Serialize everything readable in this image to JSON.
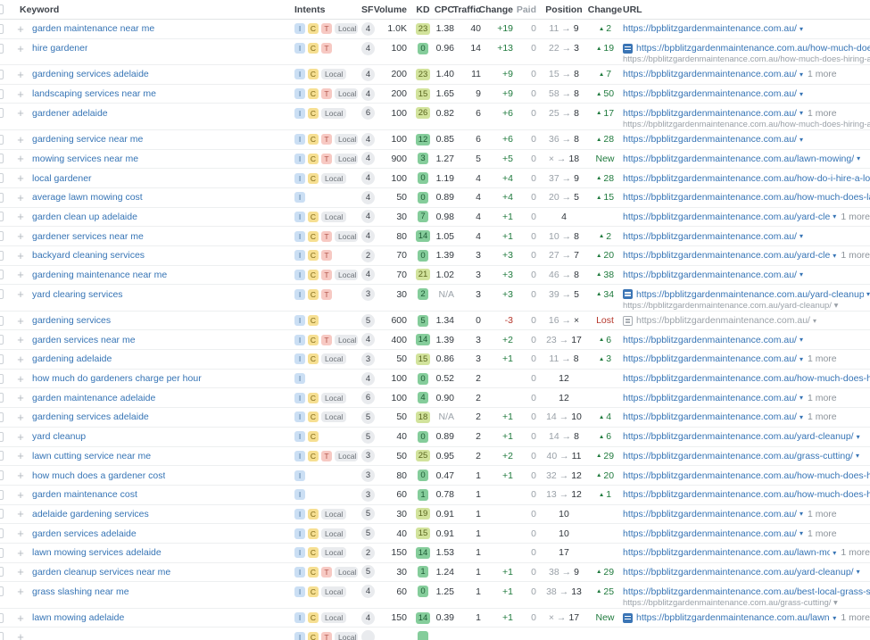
{
  "colors": {
    "link_blue": "#3674b5",
    "positive_green": "#1f7a3d",
    "negative_red": "#b5362b",
    "muted_grey": "#9aa1a8",
    "kd_easy_bg": "#85cd9b",
    "kd_medium_bg": "#d2e39c",
    "intent_informational_bg": "#cbdff4",
    "intent_commercial_bg": "#f6df92",
    "intent_transactional_bg": "#f7c9c3",
    "intent_local_bg": "#e9ebee"
  },
  "table": {
    "headers": [
      "Keyword",
      "Intents",
      "SF",
      "Volume",
      "KD",
      "CPC",
      "Traffic",
      "Change",
      "Paid",
      "Position",
      "Change",
      "URL"
    ],
    "rows": [
      {
        "kw": "garden maintenance near me",
        "intents": [
          "I",
          "C",
          "T",
          "Local"
        ],
        "sf": "4",
        "vol": "1.0K",
        "kd": "23",
        "kdlv": "m",
        "cpc": "1.38",
        "traf": "40",
        "tchg": "+19",
        "paid": "0",
        "pprev": "11",
        "pcur": "9",
        "chg": "2",
        "chgtype": "up",
        "icon": "",
        "url": "https://bpblitzgardenmaintenance.com.au/",
        "caret": true,
        "more": "",
        "urlgrey": false,
        "url2": "",
        "url2caret": false
      },
      {
        "kw": "hire gardener",
        "intents": [
          "I",
          "C",
          "T"
        ],
        "sf": "4",
        "vol": "100",
        "kd": "0",
        "kdlv": "e",
        "cpc": "0.96",
        "traf": "14",
        "tchg": "+13",
        "paid": "0",
        "pprev": "22",
        "pcur": "3",
        "chg": "19",
        "chgtype": "up",
        "icon": "blue",
        "url": "https://bpblitzgardenmaintenance.com.au/how-much-does-hiring-a-g",
        "caret": false,
        "more": "",
        "urlgrey": false,
        "url2": "https://bpblitzgardenmaintenance.com.au/how-much-does-hiring-a-g",
        "url2caret": false
      },
      {
        "kw": "gardening services adelaide",
        "intents": [
          "I",
          "C",
          "Local"
        ],
        "sf": "4",
        "vol": "200",
        "kd": "23",
        "kdlv": "m",
        "cpc": "1.40",
        "traf": "11",
        "tchg": "+9",
        "paid": "0",
        "pprev": "15",
        "pcur": "8",
        "chg": "7",
        "chgtype": "up",
        "icon": "",
        "url": "https://bpblitzgardenmaintenance.com.au/",
        "caret": true,
        "more": "1 more",
        "urlgrey": false,
        "url2": "",
        "url2caret": false
      },
      {
        "kw": "landscaping services near me",
        "intents": [
          "I",
          "C",
          "T",
          "Local"
        ],
        "sf": "4",
        "vol": "200",
        "kd": "15",
        "kdlv": "m",
        "cpc": "1.65",
        "traf": "9",
        "tchg": "+9",
        "paid": "0",
        "pprev": "58",
        "pcur": "8",
        "chg": "50",
        "chgtype": "up",
        "icon": "",
        "url": "https://bpblitzgardenmaintenance.com.au/",
        "caret": true,
        "more": "",
        "urlgrey": false,
        "url2": "",
        "url2caret": false
      },
      {
        "kw": "gardener adelaide",
        "intents": [
          "I",
          "C",
          "Local"
        ],
        "sf": "6",
        "vol": "100",
        "kd": "26",
        "kdlv": "m",
        "cpc": "0.82",
        "traf": "6",
        "tchg": "+6",
        "paid": "0",
        "pprev": "25",
        "pcur": "8",
        "chg": "17",
        "chgtype": "up",
        "icon": "",
        "url": "https://bpblitzgardenmaintenance.com.au/",
        "caret": true,
        "more": "1 more",
        "urlgrey": false,
        "url2": "https://bpblitzgardenmaintenance.com.au/how-much-does-hiring-a-g",
        "url2caret": false
      },
      {
        "kw": "gardening service near me",
        "intents": [
          "I",
          "C",
          "T",
          "Local"
        ],
        "sf": "4",
        "vol": "100",
        "kd": "12",
        "kdlv": "e",
        "cpc": "0.85",
        "traf": "6",
        "tchg": "+6",
        "paid": "0",
        "pprev": "36",
        "pcur": "8",
        "chg": "28",
        "chgtype": "up",
        "icon": "",
        "url": "https://bpblitzgardenmaintenance.com.au/",
        "caret": true,
        "more": "",
        "urlgrey": false,
        "url2": "",
        "url2caret": false
      },
      {
        "kw": "mowing services near me",
        "intents": [
          "I",
          "C",
          "T",
          "Local"
        ],
        "sf": "4",
        "vol": "900",
        "kd": "3",
        "kdlv": "e",
        "cpc": "1.27",
        "traf": "5",
        "tchg": "+5",
        "paid": "0",
        "pprev": "×",
        "pcur": "18",
        "chg": "",
        "chgtype": "new",
        "icon": "",
        "url": "https://bpblitzgardenmaintenance.com.au/lawn-mowing/",
        "caret": true,
        "more": "",
        "urlgrey": false,
        "url2": "",
        "url2caret": false
      },
      {
        "kw": "local gardener",
        "intents": [
          "I",
          "C",
          "Local"
        ],
        "sf": "4",
        "vol": "100",
        "kd": "0",
        "kdlv": "e",
        "cpc": "1.19",
        "traf": "4",
        "tchg": "+4",
        "paid": "0",
        "pprev": "37",
        "pcur": "9",
        "chg": "28",
        "chgtype": "up",
        "icon": "",
        "url": "https://bpblitzgardenmaintenance.com.au/how-do-i-hire-a-local-garde",
        "caret": false,
        "more": "",
        "urlgrey": false,
        "url2": "",
        "url2caret": false
      },
      {
        "kw": "average lawn mowing cost",
        "intents": [
          "I"
        ],
        "sf": "4",
        "vol": "50",
        "kd": "0",
        "kdlv": "e",
        "cpc": "0.89",
        "traf": "4",
        "tchg": "+4",
        "paid": "0",
        "pprev": "20",
        "pcur": "5",
        "chg": "15",
        "chgtype": "up",
        "icon": "",
        "url": "https://bpblitzgardenmaintenance.com.au/how-much-does-lawn-mow",
        "caret": false,
        "more": "",
        "urlgrey": false,
        "url2": "",
        "url2caret": false
      },
      {
        "kw": "garden clean up adelaide",
        "intents": [
          "I",
          "C",
          "Local"
        ],
        "sf": "4",
        "vol": "30",
        "kd": "7",
        "kdlv": "e",
        "cpc": "0.98",
        "traf": "4",
        "tchg": "+1",
        "paid": "0",
        "pprev": "",
        "pcur": "4",
        "chg": "",
        "chgtype": "none",
        "icon": "",
        "url": "https://bpblitzgardenmaintenance.com.au/yard-cleanup/",
        "caret": true,
        "more": "1 more",
        "urlgrey": false,
        "url2": "",
        "url2caret": false
      },
      {
        "kw": "gardener services near me",
        "intents": [
          "I",
          "C",
          "T",
          "Local"
        ],
        "sf": "4",
        "vol": "80",
        "kd": "14",
        "kdlv": "e",
        "cpc": "1.05",
        "traf": "4",
        "tchg": "+1",
        "paid": "0",
        "pprev": "10",
        "pcur": "8",
        "chg": "2",
        "chgtype": "up",
        "icon": "",
        "url": "https://bpblitzgardenmaintenance.com.au/",
        "caret": true,
        "more": "",
        "urlgrey": false,
        "url2": "",
        "url2caret": false
      },
      {
        "kw": "backyard cleaning services",
        "intents": [
          "I",
          "C",
          "T"
        ],
        "sf": "2",
        "vol": "70",
        "kd": "0",
        "kdlv": "e",
        "cpc": "1.39",
        "traf": "3",
        "tchg": "+3",
        "paid": "0",
        "pprev": "27",
        "pcur": "7",
        "chg": "20",
        "chgtype": "up",
        "icon": "",
        "url": "https://bpblitzgardenmaintenance.com.au/yard-cleanup/",
        "caret": true,
        "more": "1 more",
        "urlgrey": false,
        "url2": "",
        "url2caret": false
      },
      {
        "kw": "gardening maintenance near me",
        "intents": [
          "I",
          "C",
          "T",
          "Local"
        ],
        "sf": "4",
        "vol": "70",
        "kd": "21",
        "kdlv": "m",
        "cpc": "1.02",
        "traf": "3",
        "tchg": "+3",
        "paid": "0",
        "pprev": "46",
        "pcur": "8",
        "chg": "38",
        "chgtype": "up",
        "icon": "",
        "url": "https://bpblitzgardenmaintenance.com.au/",
        "caret": true,
        "more": "",
        "urlgrey": false,
        "url2": "",
        "url2caret": false
      },
      {
        "kw": "yard clearing services",
        "intents": [
          "I",
          "C",
          "T"
        ],
        "sf": "3",
        "vol": "30",
        "kd": "2",
        "kdlv": "e",
        "cpc": "N/A",
        "traf": "3",
        "tchg": "+3",
        "paid": "0",
        "pprev": "39",
        "pcur": "5",
        "chg": "34",
        "chgtype": "up",
        "icon": "blue",
        "url": "https://bpblitzgardenmaintenance.com.au/yard-cleanup/",
        "caret": true,
        "more": "",
        "urlgrey": false,
        "url2": "https://bpblitzgardenmaintenance.com.au/yard-cleanup/",
        "url2caret": true
      },
      {
        "kw": "gardening services",
        "intents": [
          "I",
          "C"
        ],
        "sf": "5",
        "vol": "600",
        "kd": "5",
        "kdlv": "e",
        "cpc": "1.34",
        "traf": "0",
        "tchg": "-3",
        "paid": "0",
        "pprev": "16",
        "pcur": "×",
        "chg": "",
        "chgtype": "lost",
        "icon": "grey",
        "url": "https://bpblitzgardenmaintenance.com.au/",
        "caret": true,
        "more": "",
        "urlgrey": true,
        "url2": "",
        "url2caret": false
      },
      {
        "kw": "garden services near me",
        "intents": [
          "I",
          "C",
          "T",
          "Local"
        ],
        "sf": "4",
        "vol": "400",
        "kd": "14",
        "kdlv": "e",
        "cpc": "1.39",
        "traf": "3",
        "tchg": "+2",
        "paid": "0",
        "pprev": "23",
        "pcur": "17",
        "chg": "6",
        "chgtype": "up",
        "icon": "",
        "url": "https://bpblitzgardenmaintenance.com.au/",
        "caret": true,
        "more": "",
        "urlgrey": false,
        "url2": "",
        "url2caret": false
      },
      {
        "kw": "gardening adelaide",
        "intents": [
          "I",
          "C",
          "Local"
        ],
        "sf": "3",
        "vol": "50",
        "kd": "15",
        "kdlv": "m",
        "cpc": "0.86",
        "traf": "3",
        "tchg": "+1",
        "paid": "0",
        "pprev": "11",
        "pcur": "8",
        "chg": "3",
        "chgtype": "up",
        "icon": "",
        "url": "https://bpblitzgardenmaintenance.com.au/",
        "caret": true,
        "more": "1 more",
        "urlgrey": false,
        "url2": "",
        "url2caret": false
      },
      {
        "kw": "how much do gardeners charge per hour",
        "intents": [
          "I"
        ],
        "sf": "4",
        "vol": "100",
        "kd": "0",
        "kdlv": "e",
        "cpc": "0.52",
        "traf": "2",
        "tchg": "",
        "paid": "0",
        "pprev": "",
        "pcur": "12",
        "chg": "",
        "chgtype": "none",
        "icon": "",
        "url": "https://bpblitzgardenmaintenance.com.au/how-much-does-hiring-a-g",
        "caret": false,
        "more": "",
        "urlgrey": false,
        "url2": "",
        "url2caret": false
      },
      {
        "kw": "garden maintenance adelaide",
        "intents": [
          "I",
          "C",
          "Local"
        ],
        "sf": "6",
        "vol": "100",
        "kd": "4",
        "kdlv": "e",
        "cpc": "0.90",
        "traf": "2",
        "tchg": "",
        "paid": "0",
        "pprev": "",
        "pcur": "12",
        "chg": "",
        "chgtype": "none",
        "icon": "",
        "url": "https://bpblitzgardenmaintenance.com.au/",
        "caret": true,
        "more": "1 more",
        "urlgrey": false,
        "url2": "",
        "url2caret": false
      },
      {
        "kw": "gardening services adelaide",
        "intents": [
          "I",
          "C",
          "Local"
        ],
        "sf": "5",
        "vol": "50",
        "kd": "18",
        "kdlv": "m",
        "cpc": "N/A",
        "traf": "2",
        "tchg": "+1",
        "paid": "0",
        "pprev": "14",
        "pcur": "10",
        "chg": "4",
        "chgtype": "up",
        "icon": "",
        "url": "https://bpblitzgardenmaintenance.com.au/",
        "caret": true,
        "more": "1 more",
        "urlgrey": false,
        "url2": "",
        "url2caret": false
      },
      {
        "kw": "yard cleanup",
        "intents": [
          "I",
          "C"
        ],
        "sf": "5",
        "vol": "40",
        "kd": "0",
        "kdlv": "e",
        "cpc": "0.89",
        "traf": "2",
        "tchg": "+1",
        "paid": "0",
        "pprev": "14",
        "pcur": "8",
        "chg": "6",
        "chgtype": "up",
        "icon": "",
        "url": "https://bpblitzgardenmaintenance.com.au/yard-cleanup/",
        "caret": true,
        "more": "",
        "urlgrey": false,
        "url2": "",
        "url2caret": false
      },
      {
        "kw": "lawn cutting service near me",
        "intents": [
          "I",
          "C",
          "T",
          "Local"
        ],
        "sf": "3",
        "vol": "50",
        "kd": "25",
        "kdlv": "m",
        "cpc": "0.95",
        "traf": "2",
        "tchg": "+2",
        "paid": "0",
        "pprev": "40",
        "pcur": "11",
        "chg": "29",
        "chgtype": "up",
        "icon": "",
        "url": "https://bpblitzgardenmaintenance.com.au/grass-cutting/",
        "caret": true,
        "more": "",
        "urlgrey": false,
        "url2": "",
        "url2caret": false
      },
      {
        "kw": "how much does a gardener cost",
        "intents": [
          "I"
        ],
        "sf": "3",
        "vol": "80",
        "kd": "0",
        "kdlv": "e",
        "cpc": "0.47",
        "traf": "1",
        "tchg": "+1",
        "paid": "0",
        "pprev": "32",
        "pcur": "12",
        "chg": "20",
        "chgtype": "up",
        "icon": "",
        "url": "https://bpblitzgardenmaintenance.com.au/how-much-does-hiring-a-g",
        "caret": false,
        "more": "",
        "urlgrey": false,
        "url2": "",
        "url2caret": false
      },
      {
        "kw": "garden maintenance cost",
        "intents": [
          "I"
        ],
        "sf": "3",
        "vol": "60",
        "kd": "1",
        "kdlv": "e",
        "cpc": "0.78",
        "traf": "1",
        "tchg": "",
        "paid": "0",
        "pprev": "13",
        "pcur": "12",
        "chg": "1",
        "chgtype": "up",
        "icon": "",
        "url": "https://bpblitzgardenmaintenance.com.au/how-much-does-hiring-a-g",
        "caret": false,
        "more": "",
        "urlgrey": false,
        "url2": "",
        "url2caret": false
      },
      {
        "kw": "adelaide gardening services",
        "intents": [
          "I",
          "C",
          "Local"
        ],
        "sf": "5",
        "vol": "30",
        "kd": "19",
        "kdlv": "m",
        "cpc": "0.91",
        "traf": "1",
        "tchg": "",
        "paid": "0",
        "pprev": "",
        "pcur": "10",
        "chg": "",
        "chgtype": "none",
        "icon": "",
        "url": "https://bpblitzgardenmaintenance.com.au/",
        "caret": true,
        "more": "1 more",
        "urlgrey": false,
        "url2": "",
        "url2caret": false
      },
      {
        "kw": "garden services adelaide",
        "intents": [
          "I",
          "C",
          "Local"
        ],
        "sf": "5",
        "vol": "40",
        "kd": "15",
        "kdlv": "m",
        "cpc": "0.91",
        "traf": "1",
        "tchg": "",
        "paid": "0",
        "pprev": "",
        "pcur": "10",
        "chg": "",
        "chgtype": "none",
        "icon": "",
        "url": "https://bpblitzgardenmaintenance.com.au/",
        "caret": true,
        "more": "1 more",
        "urlgrey": false,
        "url2": "",
        "url2caret": false
      },
      {
        "kw": "lawn mowing services adelaide",
        "intents": [
          "I",
          "C",
          "Local"
        ],
        "sf": "2",
        "vol": "150",
        "kd": "14",
        "kdlv": "e",
        "cpc": "1.53",
        "traf": "1",
        "tchg": "",
        "paid": "0",
        "pprev": "",
        "pcur": "17",
        "chg": "",
        "chgtype": "none",
        "icon": "",
        "url": "https://bpblitzgardenmaintenance.com.au/lawn-mowing/",
        "caret": true,
        "more": "1 more",
        "urlgrey": false,
        "url2": "",
        "url2caret": false
      },
      {
        "kw": "garden cleanup services near me",
        "intents": [
          "I",
          "C",
          "T",
          "Local"
        ],
        "sf": "5",
        "vol": "30",
        "kd": "1",
        "kdlv": "e",
        "cpc": "1.24",
        "traf": "1",
        "tchg": "+1",
        "paid": "0",
        "pprev": "38",
        "pcur": "9",
        "chg": "29",
        "chgtype": "up",
        "icon": "",
        "url": "https://bpblitzgardenmaintenance.com.au/yard-cleanup/",
        "caret": true,
        "more": "",
        "urlgrey": false,
        "url2": "",
        "url2caret": false
      },
      {
        "kw": "grass slashing near me",
        "intents": [
          "I",
          "C",
          "Local"
        ],
        "sf": "4",
        "vol": "60",
        "kd": "0",
        "kdlv": "e",
        "cpc": "1.25",
        "traf": "1",
        "tchg": "+1",
        "paid": "0",
        "pprev": "38",
        "pcur": "13",
        "chg": "25",
        "chgtype": "up",
        "icon": "",
        "url": "https://bpblitzgardenmaintenance.com.au/best-local-grass-slashing-s",
        "caret": false,
        "more": "",
        "urlgrey": false,
        "url2": "https://bpblitzgardenmaintenance.com.au/grass-cutting/",
        "url2caret": true
      },
      {
        "kw": "lawn mowing adelaide",
        "intents": [
          "I",
          "C",
          "Local"
        ],
        "sf": "4",
        "vol": "150",
        "kd": "14",
        "kdlv": "e",
        "cpc": "0.39",
        "traf": "1",
        "tchg": "+1",
        "paid": "0",
        "pprev": "×",
        "pcur": "17",
        "chg": "",
        "chgtype": "new",
        "icon": "blue",
        "url": "https://bpblitzgardenmaintenance.com.au/lawn-mowing/",
        "caret": true,
        "more": "1 more",
        "urlgrey": false,
        "url2": "",
        "url2caret": false
      },
      {
        "kw": "",
        "intents": [
          "I",
          "C",
          "T",
          "Local"
        ],
        "sf": "",
        "vol": "",
        "kd": "",
        "kdlv": "e",
        "cpc": "",
        "traf": "",
        "tchg": "",
        "paid": "",
        "pprev": "",
        "pcur": "",
        "chg": "",
        "chgtype": "none",
        "icon": "",
        "url": "",
        "caret": false,
        "more": "",
        "urlgrey": false,
        "url2": "",
        "url2caret": false
      }
    ],
    "change_labels": {
      "new": "New",
      "lost": "Lost"
    }
  }
}
